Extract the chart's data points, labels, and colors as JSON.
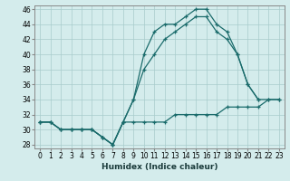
{
  "xlabel": "Humidex (Indice chaleur)",
  "bg_color": "#d4ecec",
  "grid_color": "#a8cccc",
  "line_color": "#1a6b6b",
  "xlim": [
    -0.5,
    23.5
  ],
  "ylim": [
    27.5,
    46.5
  ],
  "xticks": [
    0,
    1,
    2,
    3,
    4,
    5,
    6,
    7,
    8,
    9,
    10,
    11,
    12,
    13,
    14,
    15,
    16,
    17,
    18,
    19,
    20,
    21,
    22,
    23
  ],
  "yticks": [
    28,
    30,
    32,
    34,
    36,
    38,
    40,
    42,
    44,
    46
  ],
  "s1_x": [
    0,
    1,
    2,
    3,
    4,
    5,
    6,
    7,
    8,
    9,
    10,
    11,
    12,
    13,
    14,
    15,
    16,
    17,
    18,
    19,
    20,
    21
  ],
  "s1_y": [
    31,
    31,
    30,
    30,
    30,
    30,
    29,
    28,
    31,
    34,
    40,
    43,
    44,
    44,
    45,
    46,
    46,
    44,
    43,
    40,
    36,
    34
  ],
  "s2_x": [
    0,
    1,
    2,
    3,
    4,
    5,
    6,
    7,
    8,
    9,
    10,
    11,
    12,
    13,
    14,
    15,
    16,
    17,
    18,
    19,
    20,
    21,
    22,
    23
  ],
  "s2_y": [
    31,
    31,
    30,
    30,
    30,
    30,
    29,
    28,
    31,
    34,
    38,
    40,
    42,
    43,
    44,
    45,
    45,
    43,
    42,
    40,
    36,
    34,
    34,
    34
  ],
  "s3_x": [
    0,
    1,
    2,
    3,
    4,
    5,
    6,
    7,
    8,
    9,
    10,
    11,
    12,
    13,
    14,
    15,
    16,
    17,
    18,
    19,
    20,
    21,
    22,
    23
  ],
  "s3_y": [
    31,
    31,
    30,
    30,
    30,
    30,
    29,
    28,
    31,
    31,
    31,
    31,
    31,
    32,
    32,
    32,
    32,
    32,
    33,
    33,
    33,
    33,
    34,
    34
  ],
  "tick_fontsize": 5.5,
  "xlabel_fontsize": 6.5
}
